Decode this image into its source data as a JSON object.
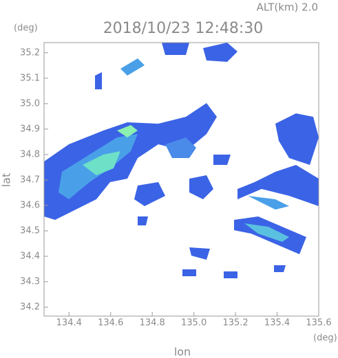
{
  "chart_data": {
    "type": "map",
    "title": "2018/10/23 12:48:30",
    "annotation": "ALT(km) 2.0",
    "x_label": "lon",
    "y_label": "lat",
    "x_unit": "(deg)",
    "y_unit": "(deg)",
    "xlim": [
      134.28,
      135.6
    ],
    "xticks": [
      134.4,
      134.6,
      134.8,
      {
        "value": 135.0,
        "label": "135.0"
      },
      135.2,
      135.4,
      135.6
    ],
    "ylim": [
      34.165,
      35.24
    ],
    "yticks": [
      34.2,
      34.3,
      34.4,
      34.5,
      34.6,
      34.7,
      34.8,
      34.9,
      {
        "value": 35.0,
        "label": "35.0"
      },
      35.1,
      35.2
    ],
    "grid": false
  }
}
